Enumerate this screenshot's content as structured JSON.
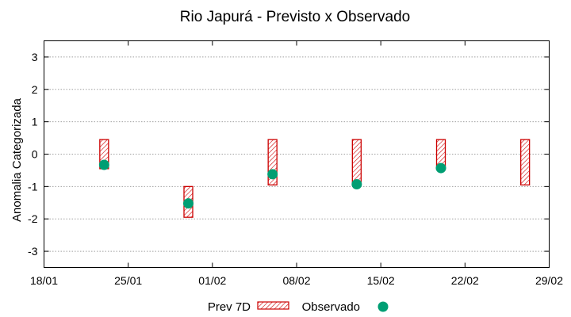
{
  "chart_data": {
    "type": "range-bar-scatter",
    "title": "Rio Japurá - Previsto x Observado",
    "xlabel": "",
    "ylabel": "Anomalia Categorizada",
    "xlim": [
      0,
      42
    ],
    "ylim": [
      -3.5,
      3.5
    ],
    "x_ticks": [
      {
        "x": 0,
        "label": "18/01"
      },
      {
        "x": 7,
        "label": "25/01"
      },
      {
        "x": 14,
        "label": "01/02"
      },
      {
        "x": 21,
        "label": "08/02"
      },
      {
        "x": 28,
        "label": "15/02"
      },
      {
        "x": 35,
        "label": "22/02"
      },
      {
        "x": 42,
        "label": "29/02"
      }
    ],
    "y_ticks": [
      {
        "y": 3,
        "label": "3"
      },
      {
        "y": 2,
        "label": "2"
      },
      {
        "y": 1,
        "label": "1"
      },
      {
        "y": 0,
        "label": "0"
      },
      {
        "y": -1,
        "label": "-1"
      },
      {
        "y": -2,
        "label": "-2"
      },
      {
        "y": -3,
        "label": "-3"
      }
    ],
    "grid": true,
    "legend_position": "bottom-center",
    "series": [
      {
        "name": "Prev 7D",
        "kind": "range",
        "color": "#cc0000",
        "points": [
          {
            "x": 5,
            "low": -0.45,
            "high": 0.45
          },
          {
            "x": 12,
            "low": -1.95,
            "high": -1.0
          },
          {
            "x": 19,
            "low": -0.95,
            "high": 0.45
          },
          {
            "x": 26,
            "low": -0.95,
            "high": 0.45
          },
          {
            "x": 33,
            "low": -0.45,
            "high": 0.45
          },
          {
            "x": 40,
            "low": -0.95,
            "high": 0.45
          }
        ]
      },
      {
        "name": "Observado",
        "kind": "point",
        "color": "#009e73",
        "points": [
          {
            "x": 5,
            "y": -0.33
          },
          {
            "x": 12,
            "y": -1.52
          },
          {
            "x": 19,
            "y": -0.62
          },
          {
            "x": 26,
            "y": -0.93
          },
          {
            "x": 33,
            "y": -0.43
          }
        ]
      }
    ]
  }
}
